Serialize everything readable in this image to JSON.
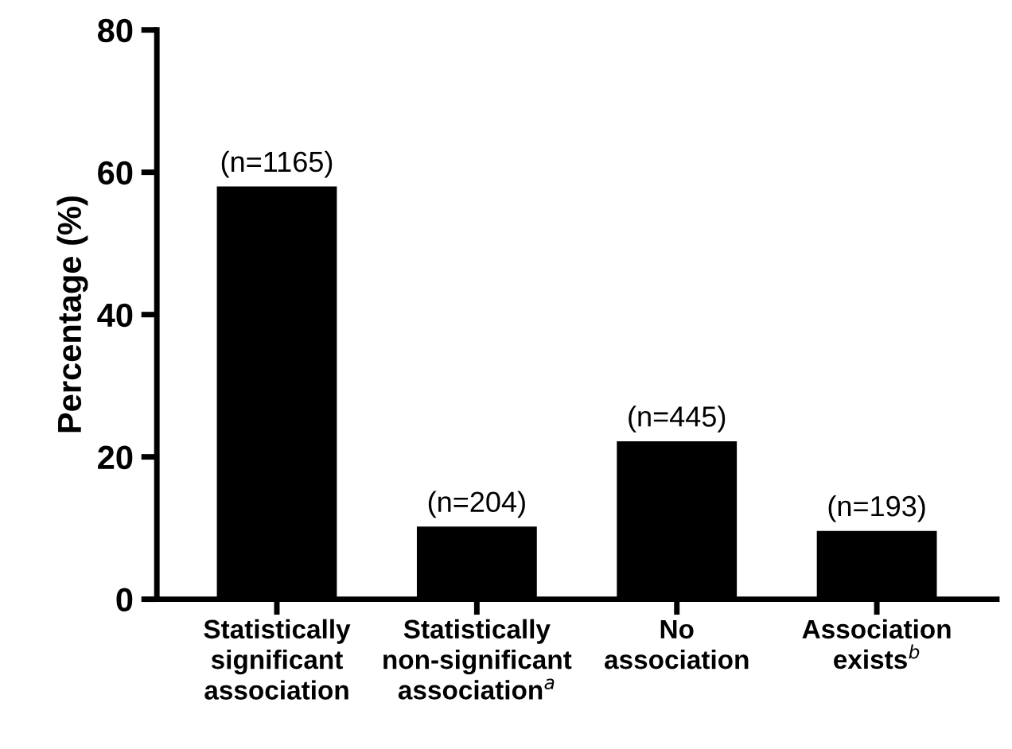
{
  "chart_data": {
    "type": "bar",
    "ylabel": "Percentage (%)",
    "categories": [
      "Statistically\nsignificant\nassociation",
      "Statistically\nnon-significant\nassociation$^{a}$",
      "No\nassociation",
      "Association\nexists$^{b}$"
    ],
    "values": [
      58.0,
      10.2,
      22.2,
      9.6
    ],
    "annotations": [
      {
        "text": "(n=1165)",
        "x": "Statistically\nsignificant\nassociation",
        "y": 58.0
      },
      {
        "text": "(n=204)",
        "x": "Statistically\nnon-significant\nassociation$^{a}$",
        "y": 10.2
      },
      {
        "text": "(n=445)",
        "x": "No\nassociation",
        "y": 22.2
      },
      {
        "text": "(n=193)",
        "x": "Association\nexists$^{b}$",
        "y": 9.6
      }
    ],
    "color": "#000000",
    "ylim": [
      0,
      80
    ],
    "yticks": [
      0,
      20,
      40,
      60,
      80
    ],
    "grid": false
  }
}
